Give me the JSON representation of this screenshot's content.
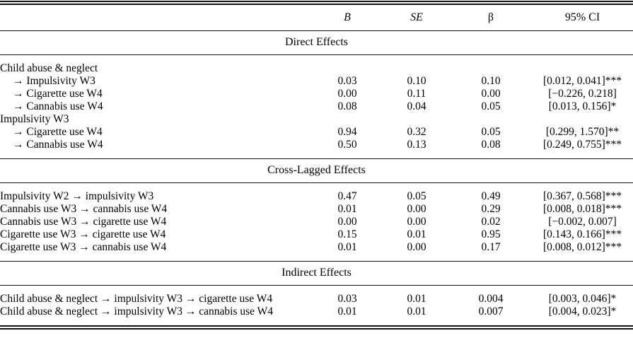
{
  "table": {
    "columns": [
      "",
      "B",
      "SE",
      "β",
      "95% CI"
    ],
    "sections": [
      {
        "title": "Direct Effects",
        "rows": [
          {
            "label": "Child abuse & neglect",
            "indent": 0,
            "b": "",
            "se": "",
            "beta": "",
            "ci": ""
          },
          {
            "label": "→ Impulsivity W3",
            "indent": 1,
            "b": "0.03",
            "se": "0.10",
            "beta": "0.10",
            "ci": "[0.012, 0.041]***"
          },
          {
            "label": "→ Cigarette use W4",
            "indent": 1,
            "b": "0.00",
            "se": "0.11",
            "beta": "0.00",
            "ci": "[−0.226, 0.218]"
          },
          {
            "label": "→ Cannabis use W4",
            "indent": 1,
            "b": "0.08",
            "se": "0.04",
            "beta": "0.05",
            "ci": "[0.013, 0.156]*"
          },
          {
            "label": "Impulsivity W3",
            "indent": 0,
            "b": "",
            "se": "",
            "beta": "",
            "ci": ""
          },
          {
            "label": "→ Cigarette use W4",
            "indent": 1,
            "b": "0.94",
            "se": "0.32",
            "beta": "0.05",
            "ci": "[0.299, 1.570]**"
          },
          {
            "label": "→ Cannabis use W4",
            "indent": 1,
            "b": "0.50",
            "se": "0.13",
            "beta": "0.08",
            "ci": "[0.249, 0.755]***"
          }
        ]
      },
      {
        "title": "Cross-Lagged Effects",
        "rows": [
          {
            "label": "Impulsivity W2 → impulsivity W3",
            "indent": 0,
            "b": "0.47",
            "se": "0.05",
            "beta": "0.49",
            "ci": "[0.367, 0.568]***"
          },
          {
            "label": "Cannabis use W3 → cannabis use W4",
            "indent": 0,
            "b": "0.01",
            "se": "0.00",
            "beta": "0.29",
            "ci": "[0.008, 0.018]***"
          },
          {
            "label": "Cannabis use W3 → cigarette use W4",
            "indent": 0,
            "b": "0.00",
            "se": "0.00",
            "beta": "0.02",
            "ci": "[−0.002, 0.007]"
          },
          {
            "label": "Cigarette use W3 → cigarette use W4",
            "indent": 0,
            "b": "0.15",
            "se": "0.01",
            "beta": "0.95",
            "ci": "[0.143, 0.166]***"
          },
          {
            "label": "Cigarette use W3 → cannabis use W4",
            "indent": 0,
            "b": "0.01",
            "se": "0.00",
            "beta": "0.17",
            "ci": "[0.008, 0.012]***"
          }
        ]
      },
      {
        "title": "Indirect Effects",
        "rows": [
          {
            "label": "Child abuse & neglect → impulsivity W3 → cigarette use W4",
            "indent": 0,
            "b": "0.03",
            "se": "0.01",
            "beta": "0.004",
            "ci": "[0.003, 0.046]*"
          },
          {
            "label": "Child abuse & neglect → impulsivity W3 → cannabis use W4",
            "indent": 0,
            "b": "0.01",
            "se": "0.01",
            "beta": "0.007",
            "ci": "[0.004, 0.023]*"
          }
        ]
      }
    ]
  }
}
